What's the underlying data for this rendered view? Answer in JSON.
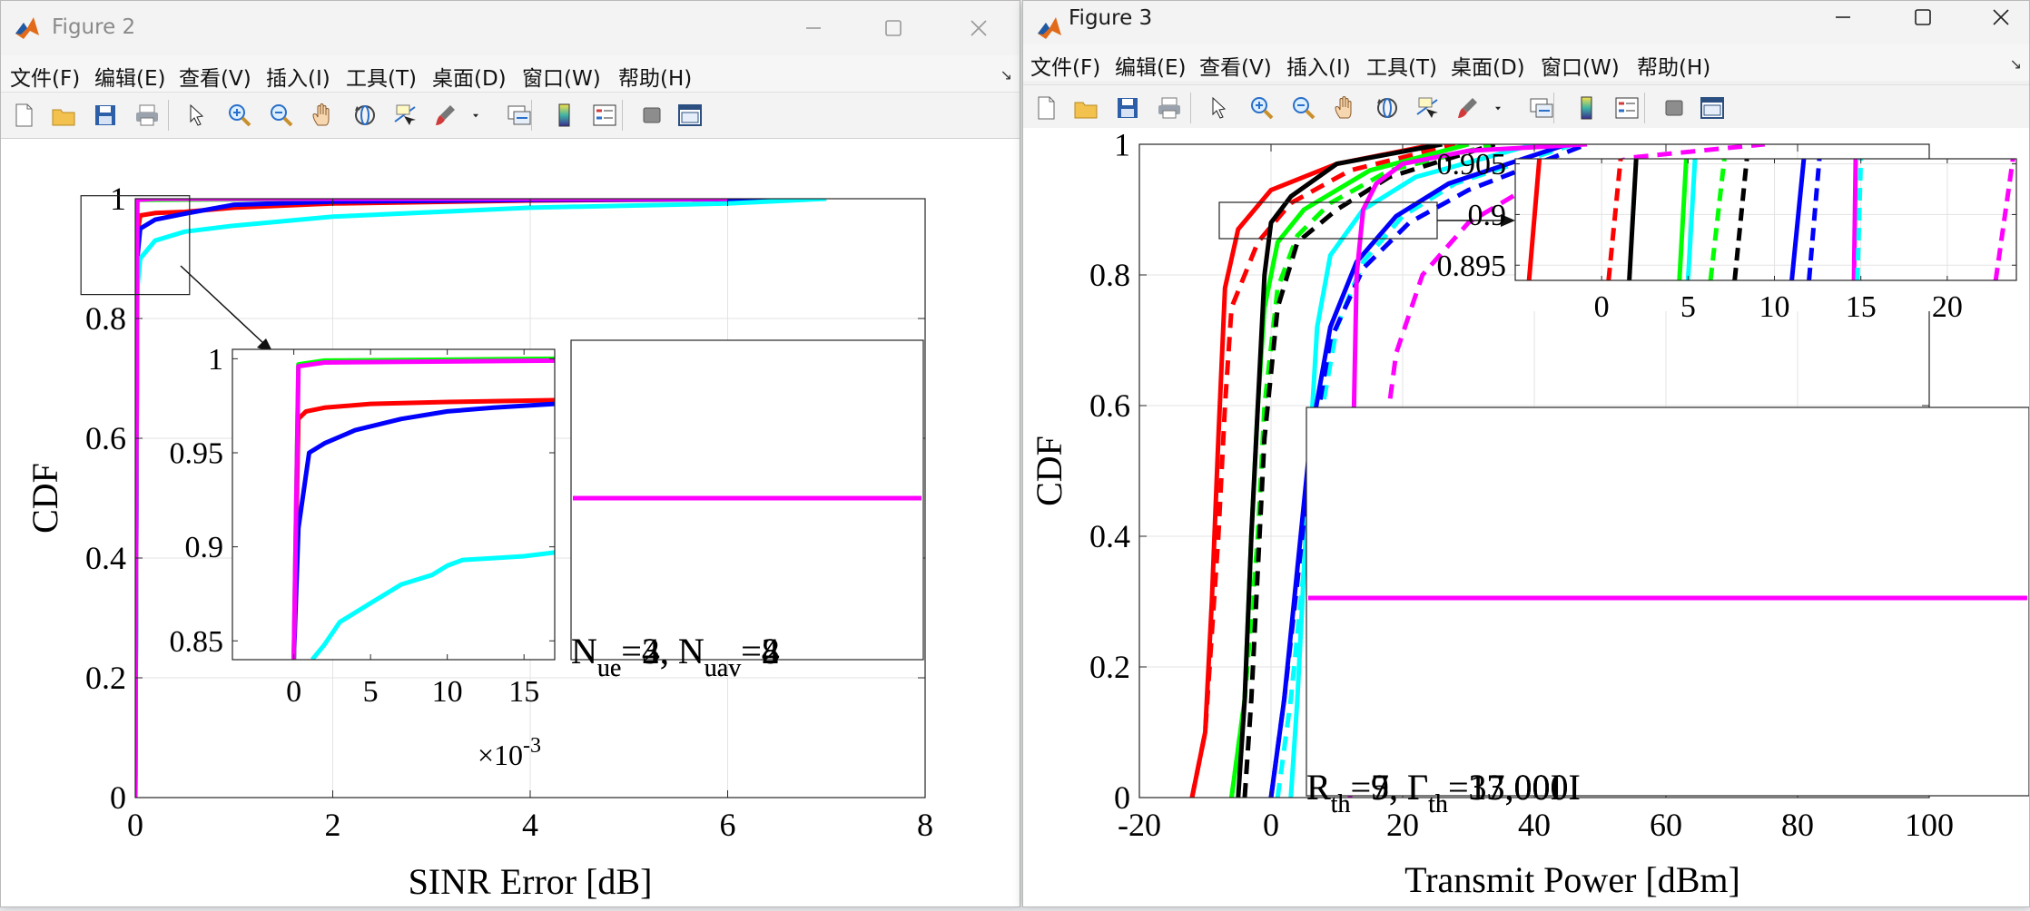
{
  "figure2": {
    "title": "Figure 2",
    "menus": [
      "文件(F)",
      "编辑(E)",
      "查看(V)",
      "插入(I)",
      "工具(T)",
      "桌面(D)",
      "窗口(W)",
      "帮助(H)"
    ],
    "toolbar_icons": [
      "new-figure-icon",
      "open-file-icon",
      "save-icon",
      "print-icon",
      "pointer-icon",
      "zoom-in-icon",
      "zoom-out-icon",
      "pan-hand-icon",
      "rotate-3d-icon",
      "data-cursor-icon",
      "brush-icon",
      "brush-dropdown-icon",
      "link-plot-icon",
      "colorbar-icon",
      "legend-icon",
      "hide-plot-tools-icon",
      "show-plot-tools-icon"
    ],
    "chart_data": {
      "type": "line",
      "xlabel": "SINR Error [dB]",
      "ylabel": "CDF",
      "xlim": [
        0,
        8
      ],
      "ylim": [
        0,
        1
      ],
      "xticks": [
        "0",
        "2",
        "4",
        "6",
        "8"
      ],
      "yticks": [
        "0",
        "0.2",
        "0.4",
        "0.6",
        "0.8",
        "1"
      ],
      "grid": true,
      "series": [
        {
          "color": "#ff0000",
          "x": [
            0,
            0.02,
            0.05,
            0.2,
            0.5,
            1,
            2,
            4,
            6.5
          ],
          "y": [
            0,
            0.94,
            0.972,
            0.976,
            0.978,
            0.985,
            0.992,
            0.997,
            1
          ]
        },
        {
          "color": "#0000ff",
          "x": [
            0,
            0.02,
            0.05,
            0.2,
            0.5,
            1,
            2,
            4,
            6.5
          ],
          "y": [
            0,
            0.9,
            0.95,
            0.965,
            0.975,
            0.99,
            0.995,
            0.998,
            1
          ]
        },
        {
          "color": "#00ffff",
          "x": [
            0,
            0.02,
            0.05,
            0.2,
            0.5,
            1,
            2,
            4,
            6,
            7
          ],
          "y": [
            0,
            0.85,
            0.9,
            0.93,
            0.945,
            0.955,
            0.97,
            0.985,
            0.992,
            1
          ]
        },
        {
          "color": "#00ff00",
          "x": [
            0,
            0.02,
            2,
            6
          ],
          "y": [
            0,
            0.998,
            1,
            1
          ]
        },
        {
          "color": "#ff00ff",
          "x": [
            0,
            0.02,
            0.2,
            6
          ],
          "y": [
            0,
            0.998,
            1,
            1
          ]
        }
      ],
      "zoom_box": {
        "x": [
          -0.55,
          0.55
        ],
        "y": [
          0.84,
          1.005
        ]
      },
      "inset": {
        "xlim": [
          -0.004,
          0.017
        ],
        "ylim": [
          0.84,
          1.005
        ],
        "xticks": [
          "0",
          "5",
          "10",
          "15"
        ],
        "yticks": [
          "0.85",
          "0.9",
          "0.95",
          "1"
        ],
        "xexponent_base": "×10",
        "xexponent_power": "-3",
        "series": [
          {
            "color": "#ff0000",
            "x": [
              0,
              0.0003,
              0.0008,
              0.002,
              0.005,
              0.01,
              0.017
            ],
            "y": [
              0.84,
              0.968,
              0.972,
              0.974,
              0.976,
              0.977,
              0.978
            ]
          },
          {
            "color": "#0000ff",
            "x": [
              0,
              0.0003,
              0.001,
              0.002,
              0.004,
              0.007,
              0.01,
              0.013,
              0.017
            ],
            "y": [
              0.84,
              0.91,
              0.95,
              0.955,
              0.962,
              0.968,
              0.972,
              0.974,
              0.976
            ]
          },
          {
            "color": "#00ffff",
            "x": [
              0.0012,
              0.002,
              0.003,
              0.005,
              0.007,
              0.009,
              0.01,
              0.011,
              0.013,
              0.015,
              0.017
            ],
            "y": [
              0.84,
              0.848,
              0.86,
              0.87,
              0.88,
              0.885,
              0.89,
              0.893,
              0.894,
              0.895,
              0.897
            ]
          },
          {
            "color": "#00ff00",
            "x": [
              0,
              0.0003,
              0.002,
              0.017
            ],
            "y": [
              0.84,
              0.997,
              0.999,
              1.0
            ]
          },
          {
            "color": "#ff00ff",
            "x": [
              0,
              0.0003,
              0.002,
              0.017
            ],
            "y": [
              0.84,
              0.996,
              0.998,
              0.999
            ]
          }
        ]
      },
      "legend_box": {
        "line_color": "#ff00ff",
        "overlapping_labels": [
          {
            "n_ue": "2",
            "n_uav": "8"
          },
          {
            "n_ue": "3",
            "n_uav": "2"
          },
          {
            "n_ue": "4",
            "n_uav": "4"
          }
        ],
        "label_ue": "N",
        "sub_ue": "ue",
        "label_uav": "N",
        "sub_uav": "uav"
      }
    }
  },
  "figure3": {
    "title": "Figure 3",
    "menus": [
      "文件(F)",
      "编辑(E)",
      "查看(V)",
      "插入(I)",
      "工具(T)",
      "桌面(D)",
      "窗口(W)",
      "帮助(H)"
    ],
    "chart_data": {
      "type": "line",
      "xlabel": "Transmit Power [dBm]",
      "ylabel": "CDF",
      "xlim": [
        -20,
        100
      ],
      "ylim": [
        0,
        1
      ],
      "xticks": [
        "-20",
        "0",
        "20",
        "40",
        "60",
        "80",
        "100"
      ],
      "yticks": [
        "0",
        "0.2",
        "0.4",
        "0.6",
        "0.8",
        "1"
      ],
      "grid": true,
      "series": [
        {
          "color": "#ff0000",
          "dash": false,
          "x": [
            -12,
            -10,
            -9,
            -8,
            -7,
            -5,
            0,
            10,
            25
          ],
          "y": [
            0,
            0.1,
            0.3,
            0.55,
            0.78,
            0.87,
            0.93,
            0.97,
            1
          ]
        },
        {
          "color": "#ff0000",
          "dash": true,
          "x": [
            -12,
            -10,
            -8,
            -7,
            -6,
            -2,
            3,
            12,
            28
          ],
          "y": [
            0,
            0.1,
            0.4,
            0.6,
            0.75,
            0.85,
            0.91,
            0.96,
            1
          ]
        },
        {
          "color": "#00ff00",
          "dash": false,
          "x": [
            -6,
            -4,
            -3,
            -2,
            -1,
            1,
            5,
            15,
            30
          ],
          "y": [
            0,
            0.15,
            0.4,
            0.6,
            0.75,
            0.85,
            0.9,
            0.96,
            1
          ]
        },
        {
          "color": "#00ff00",
          "dash": true,
          "x": [
            -6,
            -4,
            -2,
            -1,
            1,
            4,
            9,
            18,
            34
          ],
          "y": [
            0,
            0.15,
            0.4,
            0.6,
            0.78,
            0.86,
            0.91,
            0.96,
            1
          ]
        },
        {
          "color": "#000000",
          "dash": false,
          "x": [
            -5,
            -4,
            -3,
            -2,
            -1,
            0,
            3,
            10,
            26
          ],
          "y": [
            0,
            0.15,
            0.4,
            0.6,
            0.8,
            0.88,
            0.92,
            0.97,
            1
          ]
        },
        {
          "color": "#000000",
          "dash": true,
          "x": [
            -4,
            -3,
            -2,
            -1,
            1,
            4,
            10,
            18,
            34
          ],
          "y": [
            0,
            0.15,
            0.35,
            0.55,
            0.75,
            0.85,
            0.9,
            0.95,
            1
          ]
        },
        {
          "color": "#00ffff",
          "dash": false,
          "x": [
            3,
            4,
            5,
            6,
            7,
            9,
            14,
            22,
            40
          ],
          "y": [
            0,
            0.15,
            0.35,
            0.55,
            0.72,
            0.83,
            0.9,
            0.95,
            1
          ]
        },
        {
          "color": "#00ffff",
          "dash": true,
          "x": [
            1,
            3,
            5,
            7,
            10,
            14,
            20,
            28,
            46
          ],
          "y": [
            0,
            0.15,
            0.35,
            0.55,
            0.72,
            0.82,
            0.89,
            0.94,
            1
          ]
        },
        {
          "color": "#0000ff",
          "dash": false,
          "x": [
            0,
            2,
            4,
            6,
            9,
            13,
            19,
            27,
            45
          ],
          "y": [
            0,
            0.15,
            0.35,
            0.55,
            0.72,
            0.82,
            0.89,
            0.94,
            1
          ]
        },
        {
          "color": "#0000ff",
          "dash": true,
          "x": [
            0,
            2,
            4,
            6,
            9,
            14,
            21,
            30,
            48
          ],
          "y": [
            0,
            0.15,
            0.33,
            0.52,
            0.7,
            0.81,
            0.88,
            0.93,
            1
          ]
        },
        {
          "color": "#ff00ff",
          "dash": false,
          "x": [
            12,
            12.3,
            12.6,
            13,
            14,
            16,
            20,
            30,
            48
          ],
          "y": [
            0,
            0.3,
            0.6,
            0.8,
            0.9,
            0.94,
            0.97,
            0.99,
            1
          ]
        },
        {
          "color": "#ff00ff",
          "dash": true,
          "x": [
            12,
            14,
            16,
            19,
            23,
            30,
            40,
            55,
            75
          ],
          "y": [
            0,
            0.2,
            0.45,
            0.68,
            0.8,
            0.88,
            0.94,
            0.98,
            1
          ]
        }
      ],
      "zoom_box": {
        "x": [
          -8,
          25
        ],
        "y": [
          0.845,
          0.905
        ]
      },
      "inset": {
        "xlim": [
          -5,
          24
        ],
        "ylim": [
          0.8935,
          0.9055
        ],
        "xticks": [
          "0",
          "5",
          "10",
          "15",
          "20"
        ],
        "yticks": [
          "0.895",
          "0.9",
          "0.905"
        ],
        "series": [
          {
            "color": "#ff0000",
            "dash": false,
            "x": [
              -4.2,
              -3.6
            ],
            "y": [
              0.8935,
              0.9055
            ]
          },
          {
            "color": "#ff0000",
            "dash": true,
            "x": [
              0.4,
              1.1
            ],
            "y": [
              0.8935,
              0.9055
            ]
          },
          {
            "color": "#000000",
            "dash": false,
            "x": [
              1.6,
              2.0
            ],
            "y": [
              0.8935,
              0.9055
            ]
          },
          {
            "color": "#00ff00",
            "dash": false,
            "x": [
              4.5,
              4.9
            ],
            "y": [
              0.8935,
              0.9055
            ]
          },
          {
            "color": "#00ffff",
            "dash": false,
            "x": [
              5.0,
              5.4
            ],
            "y": [
              0.8935,
              0.9055
            ]
          },
          {
            "color": "#00ff00",
            "dash": true,
            "x": [
              6.3,
              7.1
            ],
            "y": [
              0.8935,
              0.9055
            ]
          },
          {
            "color": "#000000",
            "dash": true,
            "x": [
              7.7,
              8.4
            ],
            "y": [
              0.8935,
              0.9055
            ]
          },
          {
            "color": "#0000ff",
            "dash": false,
            "x": [
              11.0,
              11.7
            ],
            "y": [
              0.8935,
              0.9055
            ]
          },
          {
            "color": "#0000ff",
            "dash": true,
            "x": [
              12.0,
              12.6
            ],
            "y": [
              0.8935,
              0.9055
            ]
          },
          {
            "color": "#ff00ff",
            "dash": false,
            "x": [
              14.6,
              14.7
            ],
            "y": [
              0.8935,
              0.9055
            ]
          },
          {
            "color": "#00ffff",
            "dash": true,
            "x": [
              14.8,
              15.0
            ],
            "y": [
              0.8935,
              0.9055
            ]
          },
          {
            "color": "#ff00ff",
            "dash": true,
            "x": [
              22.8,
              23.8
            ],
            "y": [
              0.8935,
              0.9055
            ]
          }
        ]
      },
      "legend_box": {
        "line_color": "#ff00ff",
        "overlapping_labels": [
          {
            "r_th": "5",
            "gamma_th": "37,000"
          },
          {
            "r_th": "9",
            "gamma_th": "13,000"
          },
          {
            "r_th": "7",
            "gamma_th": "17,00"
          }
        ],
        "label_r": "R",
        "sub_r": "th",
        "label_gamma": "Γ",
        "sub_gamma": "th",
        "gamma_tail": "I"
      }
    }
  }
}
